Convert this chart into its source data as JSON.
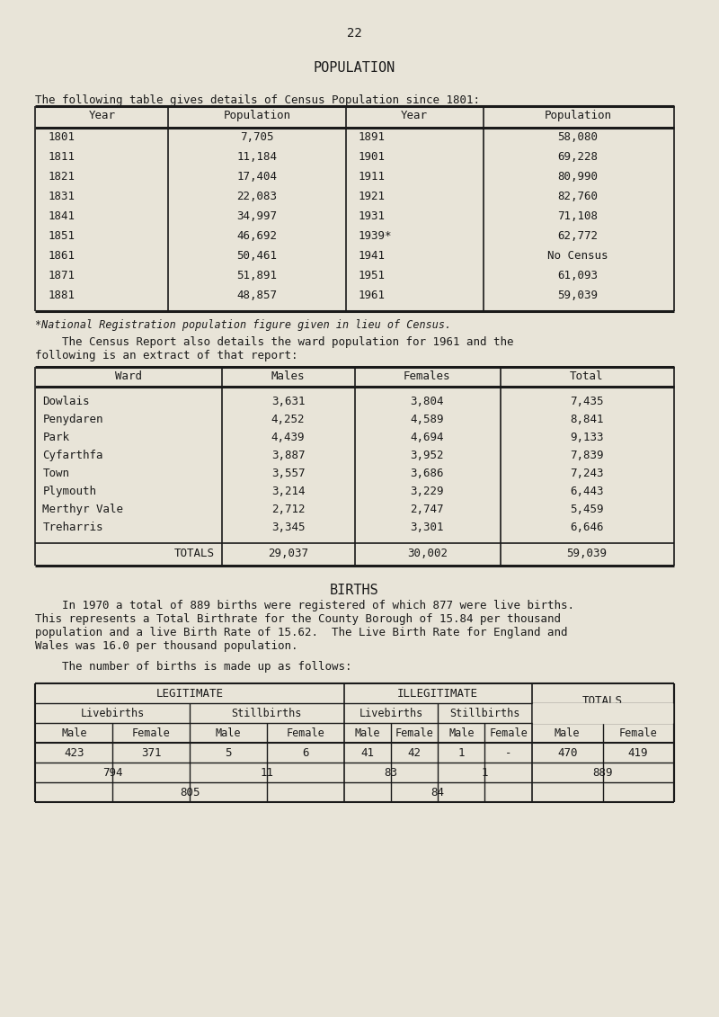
{
  "page_number": "22",
  "bg_color": "#e8e4d8",
  "text_color": "#1a1a1a",
  "section1_title": "POPULATION",
  "section1_intro": "The following table gives details of Census Population since 1801:",
  "pop_table_headers": [
    "Year",
    "Population",
    "Year",
    "Population"
  ],
  "pop_table_rows": [
    [
      "1801",
      "7,705",
      "1891",
      "58,080"
    ],
    [
      "1811",
      "11,184",
      "1901",
      "69,228"
    ],
    [
      "1821",
      "17,404",
      "1911",
      "80,990"
    ],
    [
      "1831",
      "22,083",
      "1921",
      "82,760"
    ],
    [
      "1841",
      "34,997",
      "1931",
      "71,108"
    ],
    [
      "1851",
      "46,692",
      "1939*",
      "62,772"
    ],
    [
      "1861",
      "50,461",
      "1941",
      "No Census"
    ],
    [
      "1871",
      "51,891",
      "1951",
      "61,093"
    ],
    [
      "1881",
      "48,857",
      "1961",
      "59,039"
    ]
  ],
  "footnote": "*National Registration population figure given in lieu of Census.",
  "ward_intro1": "    The Census Report also details the ward population for 1961 and the",
  "ward_intro2": "following is an extract of that report:",
  "ward_table_headers": [
    "Ward",
    "Males",
    "Females",
    "Total"
  ],
  "ward_table_rows": [
    [
      "Dowlais",
      "3,631",
      "3,804",
      "7,435"
    ],
    [
      "Penydaren",
      "4,252",
      "4,589",
      "8,841"
    ],
    [
      "Park",
      "4,439",
      "4,694",
      "9,133"
    ],
    [
      "Cyfarthfa",
      "3,887",
      "3,952",
      "7,839"
    ],
    [
      "Town",
      "3,557",
      "3,686",
      "7,243"
    ],
    [
      "Plymouth",
      "3,214",
      "3,229",
      "6,443"
    ],
    [
      "Merthyr Vale",
      "2,712",
      "2,747",
      "5,459"
    ],
    [
      "Treharris",
      "3,345",
      "3,301",
      "6,646"
    ]
  ],
  "ward_totals": [
    "TOTALS",
    "29,037",
    "30,002",
    "59,039"
  ],
  "section2_title": "BIRTHS",
  "births_line1": "    In 1970 a total of 889 births were registered of which 877 were live births.",
  "births_line2": "This represents a Total Birthrate for the County Borough of 15.84 per thousand",
  "births_line3": "population and a live Birth Rate of 15.62.  The Live Birth Rate for England and",
  "births_line4": "Wales was 16.0 per thousand population.",
  "births_intro": "    The number of births is made up as follows:",
  "births_data_row": [
    "423",
    "371",
    "5",
    "6",
    "41",
    "42",
    "1",
    "-",
    "470",
    "419"
  ],
  "births_subtotal_row": [
    "794",
    "11",
    "83",
    "1",
    "889"
  ],
  "births_total_row": [
    "805",
    "84"
  ]
}
